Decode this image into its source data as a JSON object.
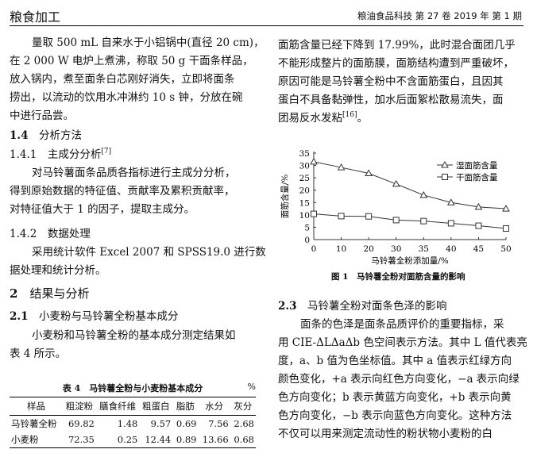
{
  "header": {
    "section": "粮食加工",
    "journal": "粮油食品科技 第 27 卷 2019 年 第 1 期"
  },
  "left": {
    "p1": [
      "量取 500 mL 自来水于小铝锅中(直径 20 cm)，",
      "在 2 000 W 电炉上煮沸，称取 50 g 干面条样品，",
      "放入锅内，煮至面条白芯刚好消失，立即将面条",
      "捞出，以流动的饮用水冲淋约 10 s 钟，分放在碗",
      "中进行品尝。"
    ],
    "h14": {
      "num": "1.4",
      "title": "分析方法"
    },
    "h141": {
      "num": "1.4.1",
      "title": "主成分分析",
      "ref": "[7]"
    },
    "p2": [
      "对马铃薯面条品质各指标进行主成分分析，",
      "得到原始数据的特征值、贡献率及累积贡献率，",
      "对特征值大于 1 的因子，提取主成分。"
    ],
    "h142": {
      "num": "1.4.2",
      "title": "数据处理"
    },
    "p3": [
      "采用统计软件 Excel 2007 和 SPSS19.0 进行数",
      "据处理和统计分析。"
    ],
    "h2": {
      "num": "2",
      "title": "结果与分析"
    },
    "h21": {
      "num": "2.1",
      "title": "小麦粉与马铃薯全粉基本成分"
    },
    "p4": [
      "小麦粉和马铃薯全粉的基本成分测定结果如",
      "表 4 所示。"
    ]
  },
  "table": {
    "caption": "表 4　马铃薯全粉与小麦粉基本成分",
    "unit": "%",
    "headers": [
      "样品",
      "粗淀粉",
      "膳食纤维",
      "粗蛋白",
      "脂肪",
      "水分",
      "灰分"
    ],
    "rows": [
      [
        "马铃薯全粉",
        "69.82",
        "1.48",
        "9.57",
        "0.69",
        "7.56",
        "2.68"
      ],
      [
        "小麦粉",
        "72.35",
        "0.25",
        "12.44",
        "0.89",
        "13.66",
        "0.68"
      ]
    ]
  },
  "right": {
    "p1": [
      "面筋含量已经下降到 17.99%，此时混合面团几乎",
      "不能形成整片的面筋膜，面筋结构遭到严重破坏，",
      "原因可能是马铃薯全粉中不含面筋蛋白，且因其",
      "蛋白不具备黏弹性，加水后面絮松散易流失，面",
      "团易反水发粘"
    ],
    "p1_ref": "[16]",
    "p1_end": "。",
    "figure_caption": "图 1　马铃薯全粉对面筋含量的影响",
    "h23": {
      "num": "2.3",
      "title": "马铃薯全粉对面条色泽的影响"
    },
    "p2": [
      "面条的色泽是面条品质评价的重要指标，采",
      "用 CIE-ΔLΔaΔb 色空间表示方法。其中 L 值代表亮",
      "度，a、b 值为色坐标值。其中 a 值表示红绿方向",
      "颜色变化，+a 表示向红色方向变化，−a 表示向绿",
      "色方向变化；b 表示黄蓝方向变化，+b 表示向黄",
      "色方向变化，−b 表示向蓝色方向变化。这种方法",
      "不仅可以用来测定流动性的粉状物小麦粉的白"
    ]
  },
  "chart_data": {
    "type": "line",
    "categories": [
      "0",
      "10",
      "20",
      "30",
      "35",
      "40",
      "45",
      "50"
    ],
    "series": [
      {
        "name": "湿面筋含量",
        "marker": "triangle",
        "values": [
          31.5,
          29.2,
          26.8,
          22.5,
          18.0,
          15.0,
          13.2,
          12.5
        ]
      },
      {
        "name": "干面筋含量",
        "marker": "square",
        "values": [
          10.4,
          9.5,
          9.4,
          7.9,
          7.5,
          6.6,
          5.6,
          4.5
        ]
      }
    ],
    "xlabel": "马铃薯全粉添加量/%",
    "ylabel": "面筋含量/%",
    "ylim": [
      0,
      35
    ],
    "yticks": [
      "0",
      "5",
      "10",
      "15",
      "20",
      "25",
      "30",
      "35"
    ],
    "grid": false,
    "legend": "top-right"
  }
}
